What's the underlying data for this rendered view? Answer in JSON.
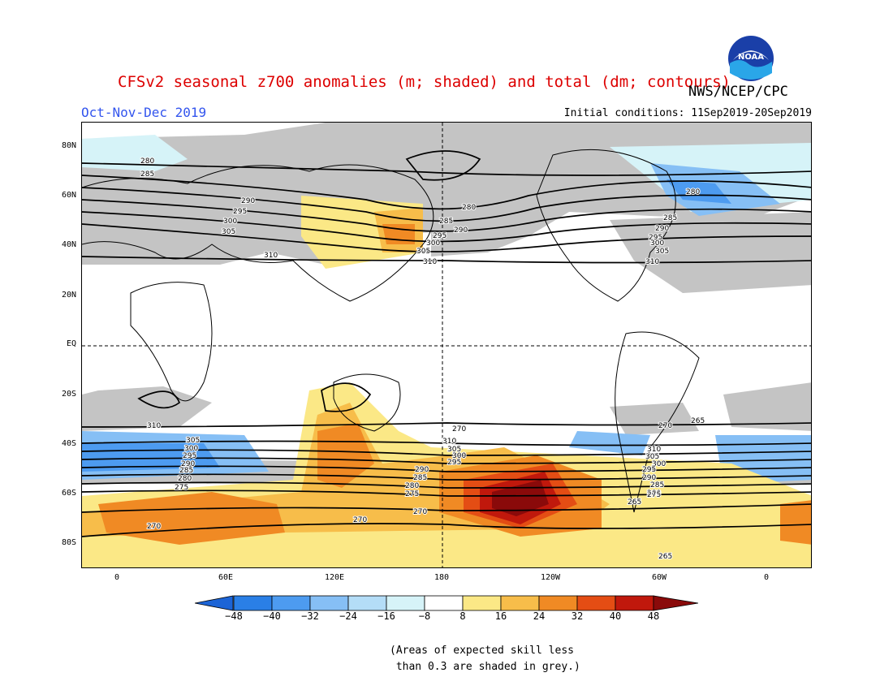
{
  "title": "CFSv2 seasonal z700 anomalies (m; shaded) and total (dm; contours)",
  "org": "NWS/NCEP/CPC",
  "season": "Oct-Nov-Dec 2019",
  "initial_conditions": "Initial conditions: 11Sep2019-20Sep2019",
  "logo_text": "NOAA",
  "lat_labels": [
    "80N",
    "60N",
    "40N",
    "20N",
    "EQ",
    "20S",
    "40S",
    "60S",
    "80S"
  ],
  "lon_labels": [
    "0",
    "60E",
    "120E",
    "180",
    "120W",
    "60W",
    "0"
  ],
  "colorbar": {
    "labels": [
      "-48",
      "-40",
      "-32",
      "-24",
      "-16",
      "-8",
      "8",
      "16",
      "24",
      "32",
      "40",
      "48"
    ],
    "colors": [
      "#1c64d6",
      "#2a7fe6",
      "#4d9bf0",
      "#86bff5",
      "#b4ddf7",
      "#d6f3f8",
      "#ffffff",
      "#fbe886",
      "#f7bd4a",
      "#f08a24",
      "#e44d14",
      "#c0180c",
      "#8a0a0a"
    ]
  },
  "contour_labels": [
    {
      "text": "280"
    },
    {
      "text": "285"
    },
    {
      "text": "290"
    },
    {
      "text": "295"
    },
    {
      "text": "300"
    },
    {
      "text": "305"
    },
    {
      "text": "310"
    },
    {
      "text": "280"
    },
    {
      "text": "285"
    },
    {
      "text": "290"
    },
    {
      "text": "295"
    },
    {
      "text": "300"
    },
    {
      "text": "305"
    },
    {
      "text": "310"
    },
    {
      "text": "280"
    },
    {
      "text": "285"
    },
    {
      "text": "290"
    },
    {
      "text": "295"
    },
    {
      "text": "300"
    },
    {
      "text": "305"
    },
    {
      "text": "310"
    },
    {
      "text": "310"
    },
    {
      "text": "305"
    },
    {
      "text": "300"
    },
    {
      "text": "295"
    },
    {
      "text": "290"
    },
    {
      "text": "285"
    },
    {
      "text": "280"
    },
    {
      "text": "275"
    },
    {
      "text": "270"
    },
    {
      "text": "310"
    },
    {
      "text": "305"
    },
    {
      "text": "300"
    },
    {
      "text": "295"
    },
    {
      "text": "290"
    },
    {
      "text": "285"
    },
    {
      "text": "280"
    },
    {
      "text": "275"
    },
    {
      "text": "270"
    },
    {
      "text": "310"
    },
    {
      "text": "305"
    },
    {
      "text": "300"
    },
    {
      "text": "295"
    },
    {
      "text": "290"
    },
    {
      "text": "285"
    },
    {
      "text": "280"
    },
    {
      "text": "275"
    },
    {
      "text": "270"
    },
    {
      "text": "270"
    },
    {
      "text": "270"
    },
    {
      "text": "265"
    },
    {
      "text": "265"
    },
    {
      "text": "265"
    },
    {
      "text": "310"
    }
  ],
  "note_line1": "(Areas of expected skill less",
  "note_line2": " than 0.3 are shaded in grey.)"
}
